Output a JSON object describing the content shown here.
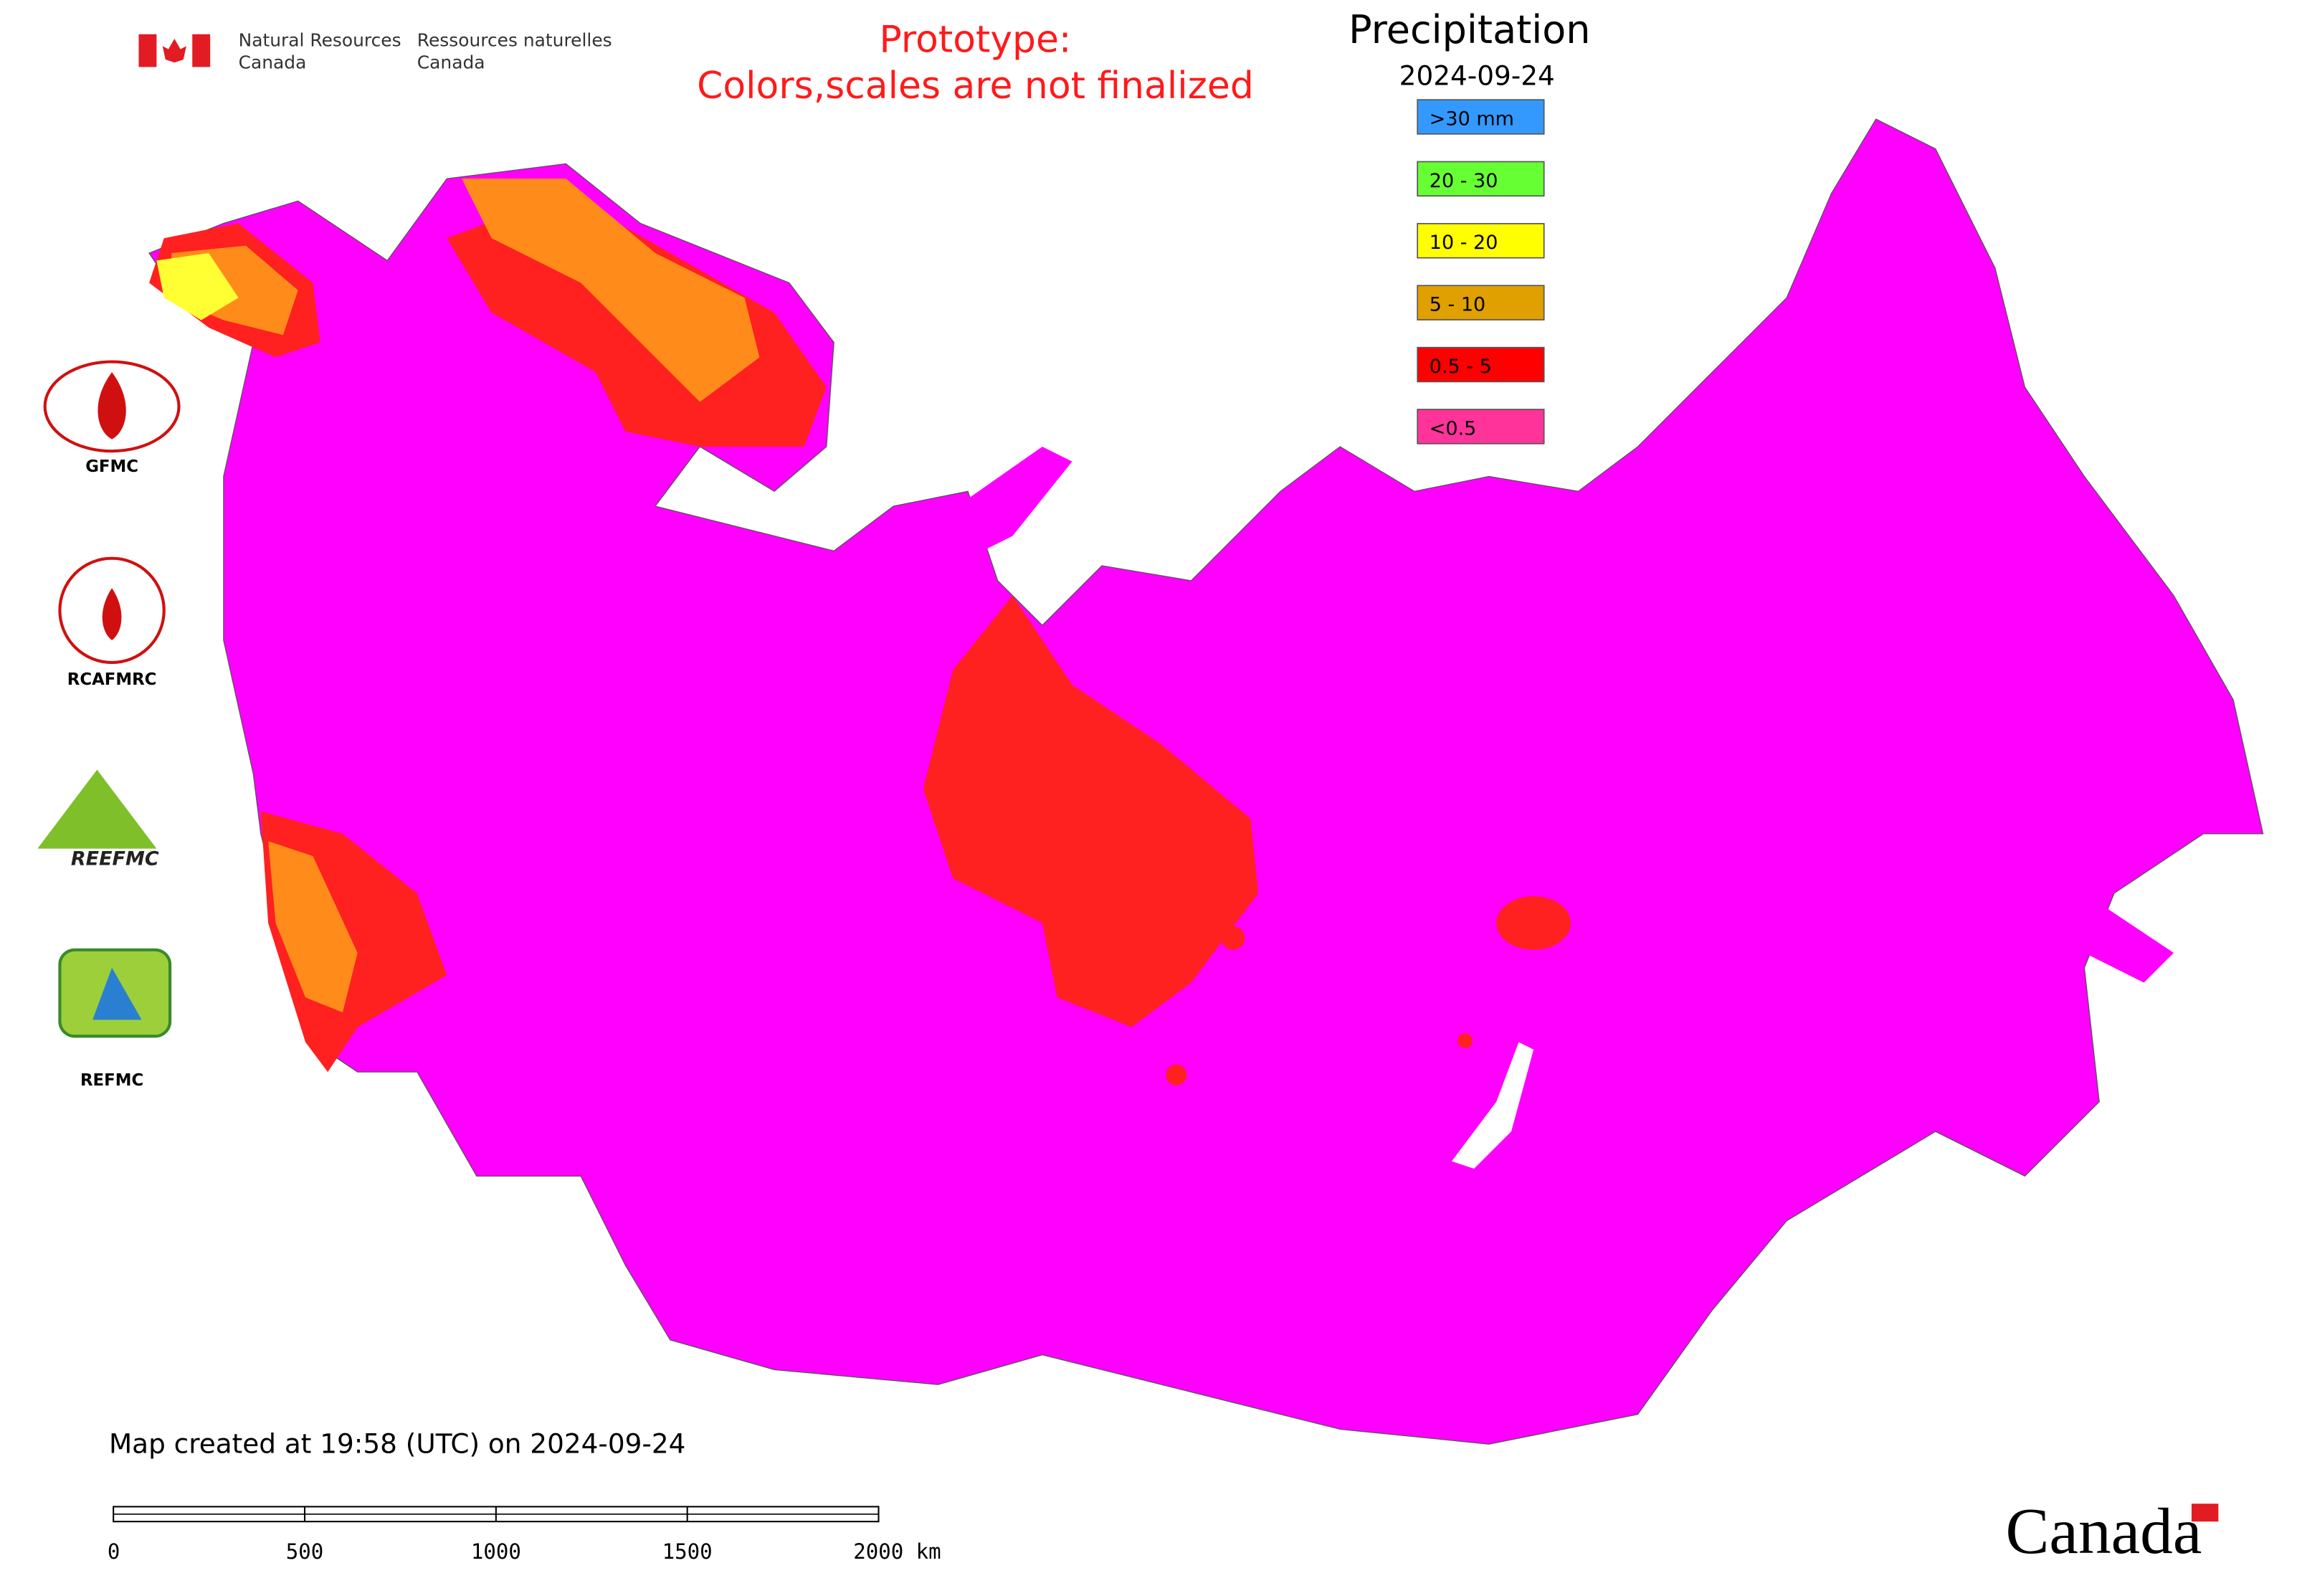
{
  "header": {
    "agency_en": [
      "Natural Resources",
      "Canada"
    ],
    "agency_fr": [
      "Ressources naturelles",
      "Canada"
    ],
    "notice": [
      "Prototype:",
      "Colors,scales are not finalized"
    ]
  },
  "legend": {
    "title": "Precipitation",
    "date": "2024-09-24",
    "items": [
      {
        "label": ">30 mm",
        "color": "#3399ff"
      },
      {
        "label": "20 - 30",
        "color": "#66ff33"
      },
      {
        "label": "10 - 20",
        "color": "#ffff00"
      },
      {
        "label": "5 - 10",
        "color": "#e0a000"
      },
      {
        "label": "0.5 - 5",
        "color": "#ff0000"
      },
      {
        "label": "<0.5",
        "color": "#ff3399"
      }
    ]
  },
  "logos": [
    "GFMC",
    "RCAFMRC",
    "REEFMC",
    "REFMC"
  ],
  "footer": {
    "created": "Map created at 19:58 (UTC) on 2024-09-24",
    "scale_labels": [
      "0",
      "500",
      "1000",
      "1500",
      "2000 km"
    ],
    "wordmark": "Canada"
  }
}
